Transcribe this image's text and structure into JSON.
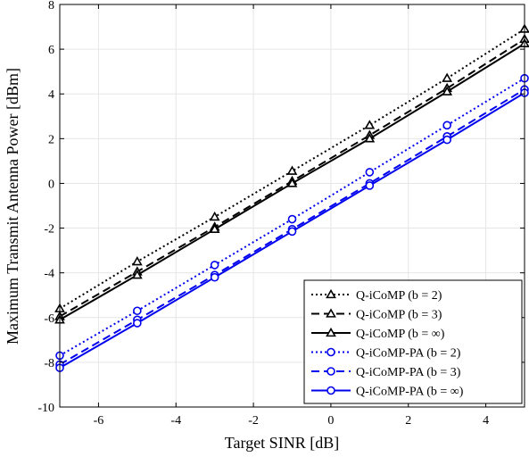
{
  "chart_data": {
    "type": "line",
    "xlabel": "Target SINR [dB]",
    "ylabel": "Maximum Transmit Antenna Power [dBm]",
    "xlim": [
      -7,
      5
    ],
    "ylim": [
      -10,
      8
    ],
    "xticks": [
      -6,
      -4,
      -2,
      0,
      2,
      4
    ],
    "yticks": [
      -10,
      -8,
      -6,
      -4,
      -2,
      0,
      2,
      4,
      6,
      8
    ],
    "grid": true,
    "legend_position": "bottom-right",
    "x": [
      -7,
      -5,
      -3,
      -1,
      1,
      3,
      5
    ],
    "series": [
      {
        "name": "Q-iCoMP (b = 2)",
        "color": "#000000",
        "dash": "dotted",
        "marker": "triangle",
        "values": [
          -5.6,
          -3.5,
          -1.5,
          0.55,
          2.6,
          4.7,
          6.9
        ]
      },
      {
        "name": "Q-iCoMP (b = 3)",
        "color": "#000000",
        "dash": "dashed",
        "marker": "triangle",
        "values": [
          -5.95,
          -3.95,
          -1.95,
          0.1,
          2.15,
          4.25,
          6.45
        ]
      },
      {
        "name": "Q-iCoMP (b = ∞)",
        "color": "#000000",
        "dash": "solid",
        "marker": "triangle",
        "values": [
          -6.1,
          -4.1,
          -2.05,
          0.0,
          2.0,
          4.1,
          6.25
        ]
      },
      {
        "name": "Q-iCoMP-PA (b = 2)",
        "color": "#0000ee",
        "dash": "dotted",
        "marker": "circle",
        "values": [
          -7.7,
          -5.7,
          -3.65,
          -1.6,
          0.5,
          2.6,
          4.7
        ]
      },
      {
        "name": "Q-iCoMP-PA (b = 3)",
        "color": "#0000ee",
        "dash": "dashed",
        "marker": "circle",
        "values": [
          -8.1,
          -6.1,
          -4.1,
          -2.05,
          0.0,
          2.1,
          4.2
        ]
      },
      {
        "name": "Q-iCoMP-PA (b = ∞)",
        "color": "#0000ee",
        "dash": "solid",
        "marker": "circle",
        "values": [
          -8.25,
          -6.25,
          -4.2,
          -2.15,
          -0.1,
          1.95,
          4.05
        ]
      }
    ]
  }
}
